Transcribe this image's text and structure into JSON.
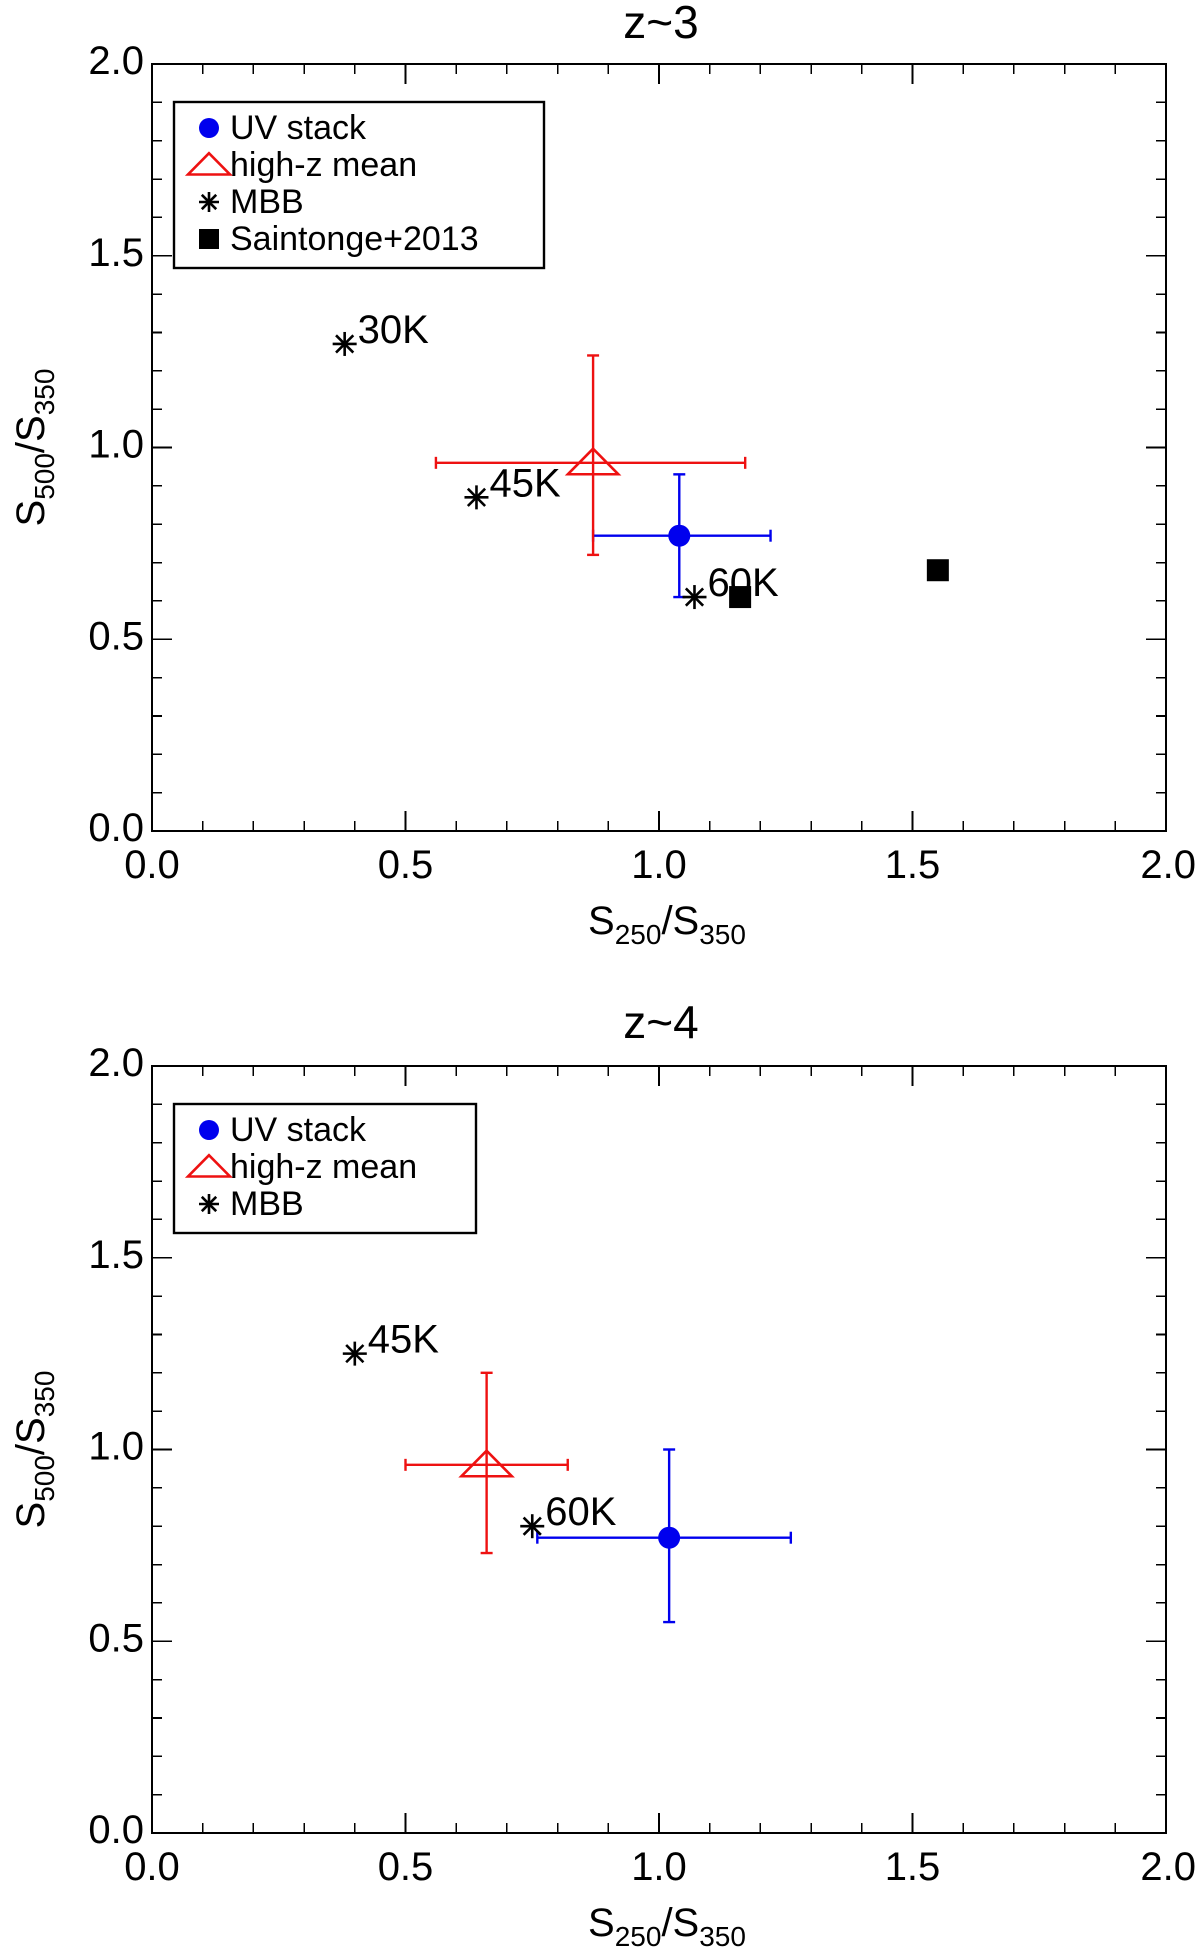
{
  "chart_data": [
    {
      "type": "scatter",
      "title": "z~3",
      "xlabel": {
        "base": "S",
        "sub1": "250",
        "sep": "/S",
        "sub2": "350"
      },
      "ylabel": {
        "base": "S",
        "sub1": "500",
        "sep": "/S",
        "sub2": "350"
      },
      "xlim": [
        0.0,
        2.0
      ],
      "ylim": [
        0.0,
        2.0
      ],
      "xticks": [
        "0.0",
        "0.5",
        "1.0",
        "1.5",
        "2.0"
      ],
      "yticks": [
        "0.0",
        "0.5",
        "1.0",
        "1.5",
        "2.0"
      ],
      "legend_position": "top-left",
      "legend": [
        {
          "label": "UV stack",
          "symbol": "circle",
          "color": "#0000ee"
        },
        {
          "label": "high-z mean",
          "symbol": "triangle",
          "color": "#ee1111"
        },
        {
          "label": "MBB",
          "symbol": "asterisk",
          "color": "#000000"
        },
        {
          "label": "Saintonge+2013",
          "symbol": "square",
          "color": "#000000"
        }
      ],
      "series": [
        {
          "name": "UV stack",
          "symbol": "circle",
          "color": "#0000ee",
          "points": [
            {
              "x": 1.04,
              "y": 0.77,
              "xerr": [
                0.87,
                1.22
              ],
              "yerr": [
                0.61,
                0.93
              ]
            }
          ]
        },
        {
          "name": "high-z mean",
          "symbol": "triangle",
          "color": "#ee1111",
          "points": [
            {
              "x": 0.87,
              "y": 0.96,
              "xerr": [
                0.56,
                1.17
              ],
              "yerr": [
                0.72,
                1.24
              ]
            }
          ]
        },
        {
          "name": "MBB",
          "symbol": "asterisk",
          "color": "#000000",
          "points": [
            {
              "x": 0.38,
              "y": 1.27,
              "label": "30K"
            },
            {
              "x": 0.64,
              "y": 0.87,
              "label": "45K"
            },
            {
              "x": 1.07,
              "y": 0.61,
              "label": "60K"
            }
          ]
        },
        {
          "name": "Saintonge+2013",
          "symbol": "square",
          "color": "#000000",
          "points": [
            {
              "x": 1.16,
              "y": 0.61
            },
            {
              "x": 1.55,
              "y": 0.68
            }
          ]
        }
      ]
    },
    {
      "type": "scatter",
      "title": "z~4",
      "xlabel": {
        "base": "S",
        "sub1": "250",
        "sep": "/S",
        "sub2": "350"
      },
      "ylabel": {
        "base": "S",
        "sub1": "500",
        "sep": "/S",
        "sub2": "350"
      },
      "xlim": [
        0.0,
        2.0
      ],
      "ylim": [
        0.0,
        2.0
      ],
      "xticks": [
        "0.0",
        "0.5",
        "1.0",
        "1.5",
        "2.0"
      ],
      "yticks": [
        "0.0",
        "0.5",
        "1.0",
        "1.5",
        "2.0"
      ],
      "legend_position": "top-left",
      "legend": [
        {
          "label": "UV stack",
          "symbol": "circle",
          "color": "#0000ee"
        },
        {
          "label": "high-z mean",
          "symbol": "triangle",
          "color": "#ee1111"
        },
        {
          "label": "MBB",
          "symbol": "asterisk",
          "color": "#000000"
        }
      ],
      "series": [
        {
          "name": "UV stack",
          "symbol": "circle",
          "color": "#0000ee",
          "points": [
            {
              "x": 1.02,
              "y": 0.77,
              "xerr": [
                0.76,
                1.26
              ],
              "yerr": [
                0.55,
                1.0
              ]
            }
          ]
        },
        {
          "name": "high-z mean",
          "symbol": "triangle",
          "color": "#ee1111",
          "points": [
            {
              "x": 0.66,
              "y": 0.96,
              "xerr": [
                0.5,
                0.82
              ],
              "yerr": [
                0.73,
                1.2
              ]
            }
          ]
        },
        {
          "name": "MBB",
          "symbol": "asterisk",
          "color": "#000000",
          "points": [
            {
              "x": 0.4,
              "y": 1.25,
              "label": "45K"
            },
            {
              "x": 0.75,
              "y": 0.8,
              "label": "60K"
            }
          ]
        }
      ]
    }
  ]
}
